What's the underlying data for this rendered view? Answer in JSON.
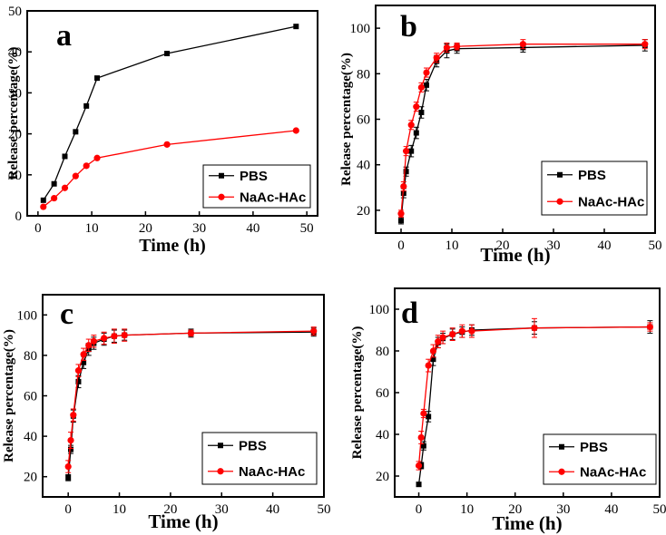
{
  "chart_data": [
    {
      "type": "line",
      "panel_label": "a",
      "xlabel": "Time (h)",
      "ylabel": "Release percentage(%)",
      "xlim": [
        -2,
        52
      ],
      "ylim": [
        0,
        50
      ],
      "xticks": [
        0,
        10,
        20,
        30,
        40,
        50
      ],
      "yticks": [
        0,
        10,
        20,
        30,
        40,
        50
      ],
      "legend_position": "bottom-right",
      "series": [
        {
          "name": "PBS",
          "color": "#000000",
          "marker": "square",
          "x": [
            1,
            3,
            5,
            7,
            9,
            11,
            24,
            48
          ],
          "y": [
            3.8,
            7.8,
            14.5,
            20.5,
            26.8,
            33.6,
            39.6,
            46.2
          ]
        },
        {
          "name": "NaAc-HAc",
          "color": "#ff0000",
          "marker": "circle",
          "x": [
            1,
            3,
            5,
            7,
            9,
            11,
            24,
            48
          ],
          "y": [
            2.2,
            4.3,
            6.8,
            9.7,
            12.2,
            14.1,
            17.4,
            20.8
          ]
        }
      ]
    },
    {
      "type": "line",
      "panel_label": "b",
      "xlabel": "Time (h)",
      "ylabel": "Release percentage(%)",
      "xlim": [
        -5,
        50
      ],
      "ylim": [
        10,
        110
      ],
      "xticks": [
        0,
        10,
        20,
        30,
        40,
        50
      ],
      "yticks": [
        20,
        40,
        60,
        80,
        100
      ],
      "legend_position": "bottom-right",
      "series": [
        {
          "name": "PBS",
          "color": "#000000",
          "marker": "square",
          "x": [
            0,
            0.5,
            1,
            2,
            3,
            4,
            5,
            7,
            9,
            11,
            24,
            48
          ],
          "y": [
            15.5,
            27.5,
            37,
            46,
            54,
            63,
            75,
            85.5,
            90,
            91,
            91.5,
            92.5
          ],
          "err": [
            1.5,
            2,
            2,
            2.5,
            2.5,
            2.5,
            2.5,
            2.5,
            3,
            2,
            2,
            2.5
          ]
        },
        {
          "name": "NaAc-HAc",
          "color": "#ff0000",
          "marker": "circle",
          "x": [
            0,
            0.5,
            1,
            2,
            3,
            4,
            5,
            7,
            9,
            11,
            24,
            48
          ],
          "y": [
            18.5,
            30.5,
            46,
            57.5,
            65.5,
            74,
            80.5,
            87,
            91.5,
            92,
            93,
            93
          ],
          "err": [
            1.5,
            2,
            2,
            2,
            2,
            2,
            2,
            2,
            2,
            1.5,
            2,
            2
          ]
        }
      ]
    },
    {
      "type": "line",
      "panel_label": "c",
      "xlabel": "Time (h)",
      "ylabel": "Release percentage(%)",
      "xlim": [
        -5,
        50
      ],
      "ylim": [
        10,
        110
      ],
      "xticks": [
        0,
        10,
        20,
        30,
        40,
        50
      ],
      "yticks": [
        20,
        40,
        60,
        80,
        100
      ],
      "legend_position": "bottom-right",
      "series": [
        {
          "name": "PBS",
          "color": "#000000",
          "marker": "square",
          "x": [
            0,
            0.5,
            1,
            2,
            3,
            4,
            5,
            7,
            9,
            11,
            24,
            48
          ],
          "y": [
            19.5,
            33.5,
            50,
            67,
            76.5,
            83,
            86,
            88,
            89.5,
            90,
            91,
            91.5
          ],
          "err": [
            1.5,
            2,
            3,
            3,
            3,
            3,
            3,
            3,
            3,
            2.5,
            2,
            2
          ]
        },
        {
          "name": "NaAc-HAc",
          "color": "#ff0000",
          "marker": "circle",
          "x": [
            0,
            0.5,
            1,
            2,
            3,
            4,
            5,
            7,
            9,
            11,
            24,
            48
          ],
          "y": [
            25,
            38,
            50.5,
            72.5,
            80.5,
            85,
            87,
            88.5,
            89.5,
            90,
            91,
            92
          ],
          "err": [
            3,
            4,
            3,
            3,
            3,
            3,
            3,
            3,
            3.5,
            3,
            1.5,
            2
          ]
        }
      ]
    },
    {
      "type": "line",
      "panel_label": "d",
      "xlabel": "Time (h)",
      "ylabel": "Release percentage(%)",
      "xlim": [
        -5,
        50
      ],
      "ylim": [
        10,
        110
      ],
      "xticks": [
        0,
        10,
        20,
        30,
        40,
        50
      ],
      "yticks": [
        20,
        40,
        60,
        80,
        100
      ],
      "legend_position": "bottom-right",
      "series": [
        {
          "name": "PBS",
          "color": "#000000",
          "marker": "square",
          "x": [
            0,
            0.5,
            1,
            2,
            3,
            4,
            5,
            7,
            9,
            11,
            24,
            48
          ],
          "y": [
            16,
            25,
            34.5,
            48.5,
            76,
            84,
            86,
            88,
            89,
            90,
            91,
            91.5
          ],
          "err": [
            1,
            1.5,
            2,
            2.5,
            3,
            2.5,
            2.5,
            2.5,
            2.5,
            2.5,
            3,
            3
          ]
        },
        {
          "name": "NaAc-HAc",
          "color": "#ff0000",
          "marker": "circle",
          "x": [
            0,
            0.5,
            1,
            2,
            3,
            4,
            5,
            7,
            9,
            11,
            24,
            48
          ],
          "y": [
            25,
            38.5,
            50,
            73,
            80,
            84.5,
            86.5,
            88,
            89.5,
            89.5,
            91,
            91.5
          ],
          "err": [
            2,
            3,
            2,
            3,
            3,
            3,
            3,
            3,
            3,
            3,
            4.5,
            2
          ]
        }
      ]
    }
  ]
}
